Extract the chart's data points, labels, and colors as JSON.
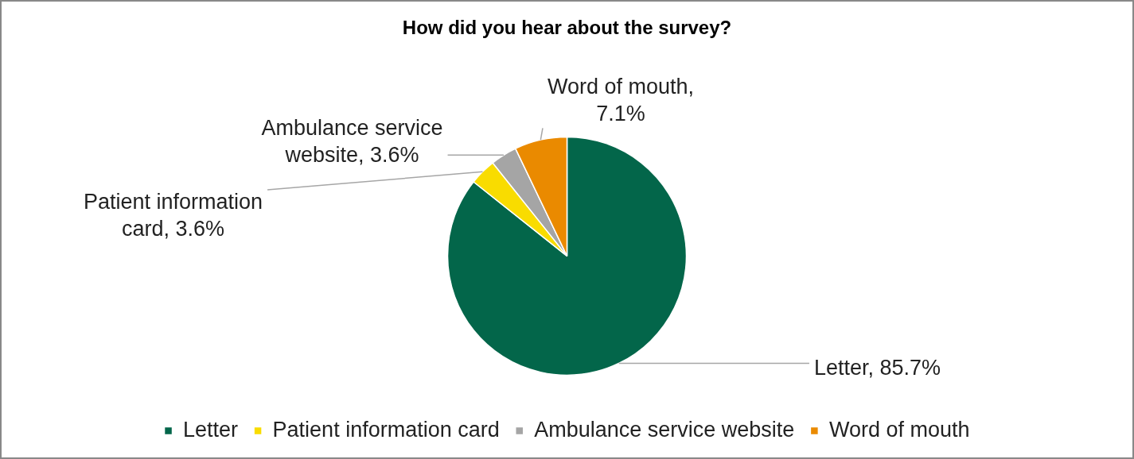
{
  "chart_data": {
    "type": "pie",
    "title": "How did you hear about the survey?",
    "categories": [
      "Letter",
      "Patient information card",
      "Ambulance service website",
      "Word of mouth"
    ],
    "values": [
      85.7,
      3.6,
      3.6,
      7.1
    ],
    "colors": [
      "#03664a",
      "#f9dc00",
      "#a5a5a5",
      "#ea8a00"
    ],
    "value_labels": [
      "Letter, 85.7%",
      "Patient information card, 3.6%",
      "Ambulance service website, 3.6%",
      "Word of mouth, 7.1%"
    ],
    "legend": "bottom"
  }
}
